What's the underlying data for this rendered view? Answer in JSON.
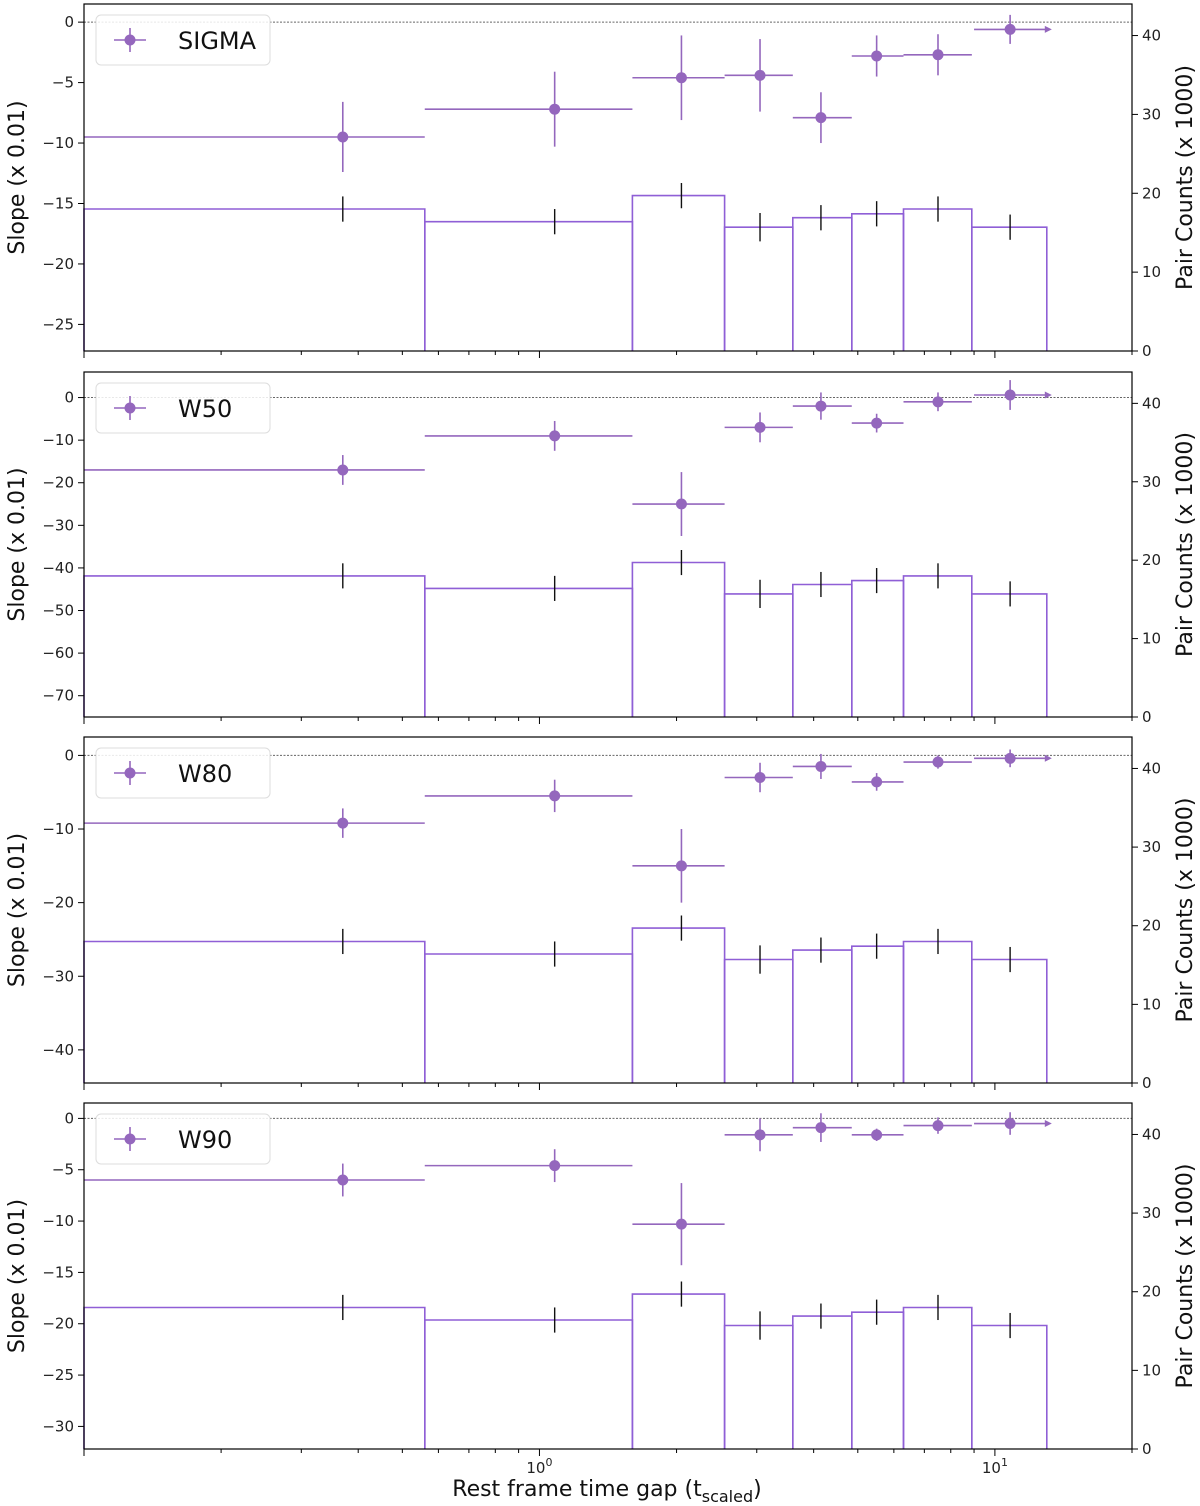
{
  "chart_data": {
    "type": "scatter+histogram",
    "xlabel_main": "Rest frame time gap (t",
    "xlabel_sub": "scaled",
    "xlabel_end": ")",
    "xscale": "log",
    "xlim": [
      0.1,
      20
    ],
    "x_ticks": [
      {
        "value": 1,
        "base": "10",
        "exp": "0"
      },
      {
        "value": 10,
        "base": "10",
        "exp": "1"
      }
    ],
    "ylabel_left": "Slope (x 0.01)",
    "ylabel_right": "Pair Counts (x 1000)",
    "marker_color": "#9467bd",
    "bar_color": "#8f5fd6",
    "bin_edges": [
      0.1,
      0.56,
      1.6,
      2.55,
      3.6,
      4.85,
      6.3,
      8.9,
      13.0
    ],
    "counts": [
      18,
      16.4,
      19.7,
      15.7,
      16.9,
      17.4,
      18,
      15.7
    ],
    "counts_err": [
      1.6,
      1.6,
      1.6,
      1.8,
      1.6,
      1.6,
      1.6,
      1.6
    ],
    "point_x": [
      0.37,
      1.08,
      2.05,
      3.05,
      4.15,
      5.5,
      7.5,
      10.8
    ],
    "point_xerr": [
      [
        0.1,
        0.56
      ],
      [
        0.56,
        1.6
      ],
      [
        1.6,
        2.55
      ],
      [
        2.55,
        3.6
      ],
      [
        3.6,
        4.85
      ],
      [
        4.85,
        6.3
      ],
      [
        6.3,
        8.9
      ],
      [
        9.0,
        13.0
      ]
    ],
    "right_ylim": [
      0,
      44
    ],
    "right_ticks": [
      0,
      10,
      20,
      30,
      40
    ],
    "panels": [
      {
        "label": "SIGMA",
        "ylim": [
          -27.2,
          1.5
        ],
        "yticks": [
          0,
          -5,
          -10,
          -15,
          -20,
          -25
        ],
        "slope": [
          -9.5,
          -7.2,
          -4.6,
          -4.4,
          -7.9,
          -2.8,
          -2.7,
          -0.6
        ],
        "slope_err": [
          2.9,
          3.1,
          3.5,
          3.0,
          2.1,
          1.7,
          1.7,
          1.2
        ],
        "last_is_limit": true
      },
      {
        "label": "W50",
        "ylim": [
          -75,
          6
        ],
        "yticks": [
          0,
          -10,
          -20,
          -30,
          -40,
          -50,
          -60,
          -70
        ],
        "slope": [
          -17,
          -9,
          -25,
          -7,
          -2,
          -6,
          -1,
          0.6
        ],
        "slope_err": [
          3.5,
          3.5,
          7.5,
          3.5,
          3.2,
          2.2,
          2.2,
          3.5
        ],
        "last_is_limit": true
      },
      {
        "label": "W80",
        "ylim": [
          -44.5,
          2.5
        ],
        "yticks": [
          0,
          -10,
          -20,
          -30,
          -40
        ],
        "slope": [
          -9.2,
          -5.5,
          -15,
          -3,
          -1.5,
          -3.6,
          -0.9,
          -0.4
        ],
        "slope_err": [
          2.0,
          2.2,
          5.0,
          2.0,
          1.7,
          1.2,
          0.9,
          1.2
        ],
        "last_is_limit": true
      },
      {
        "label": "W90",
        "ylim": [
          -32.2,
          1.5
        ],
        "yticks": [
          0,
          -5,
          -10,
          -15,
          -20,
          -25,
          -30
        ],
        "slope": [
          -6.0,
          -4.6,
          -10.3,
          -1.6,
          -0.9,
          -1.6,
          -0.7,
          -0.5
        ],
        "slope_err": [
          1.6,
          1.6,
          4.0,
          1.6,
          1.4,
          0.6,
          0.8,
          1.1
        ],
        "last_is_limit": true
      }
    ]
  }
}
